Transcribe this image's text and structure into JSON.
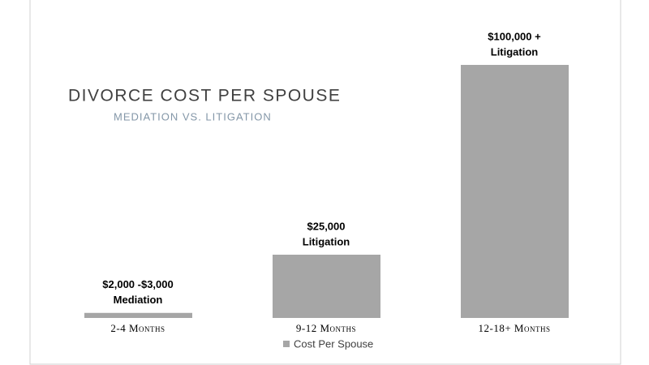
{
  "chart_data": {
    "type": "bar",
    "title": "DIVORCE COST PER SPOUSE",
    "subtitle": "MEDIATION VS. LITIGATION",
    "categories": [
      "2-4 Months",
      "9-12 Months",
      "12-18+ Months"
    ],
    "series": [
      {
        "name": "Cost Per Spouse",
        "color": "#a6a6a6",
        "values": [
          2000,
          25000,
          100000
        ],
        "value_labels": [
          "$2,000 -$3,000",
          "$25,000",
          "$100,000 +"
        ],
        "methods": [
          "Mediation",
          "Litigation",
          "Litigation"
        ]
      }
    ]
  }
}
